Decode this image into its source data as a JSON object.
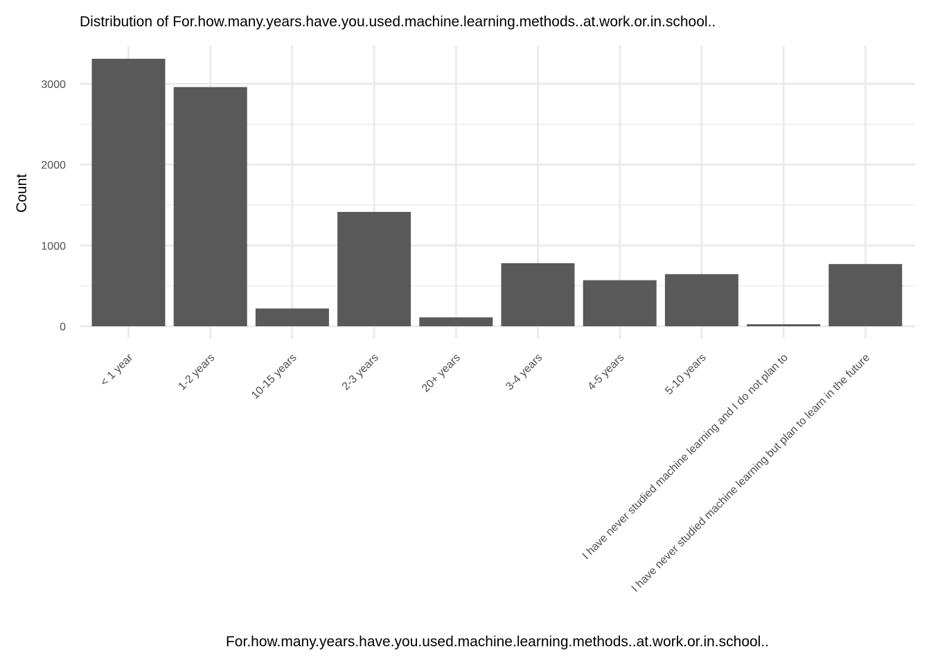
{
  "chart_data": {
    "type": "bar",
    "title": "Distribution of For.how.many.years.have.you.used.machine.learning.methods..at.work.or.in.school..",
    "xlabel": "For.how.many.years.have.you.used.machine.learning.methods..at.work.or.in.school..",
    "ylabel": "Count",
    "categories": [
      "< 1 year",
      "1-2 years",
      "10-15 years",
      "2-3 years",
      "20+ years",
      "3-4 years",
      "4-5 years",
      "5-10 years",
      "I have never studied machine learning and I do not plan to",
      "I have never studied machine learning but plan to learn in the future"
    ],
    "values": [
      3310,
      2960,
      220,
      1415,
      110,
      780,
      570,
      645,
      25,
      770
    ],
    "ylim": [
      0,
      3480
    ],
    "yticks": [
      0,
      1000,
      2000,
      3000
    ],
    "grid": true,
    "legend": "none",
    "bar_color": "#595959",
    "grid_color": "#ebebeb"
  }
}
